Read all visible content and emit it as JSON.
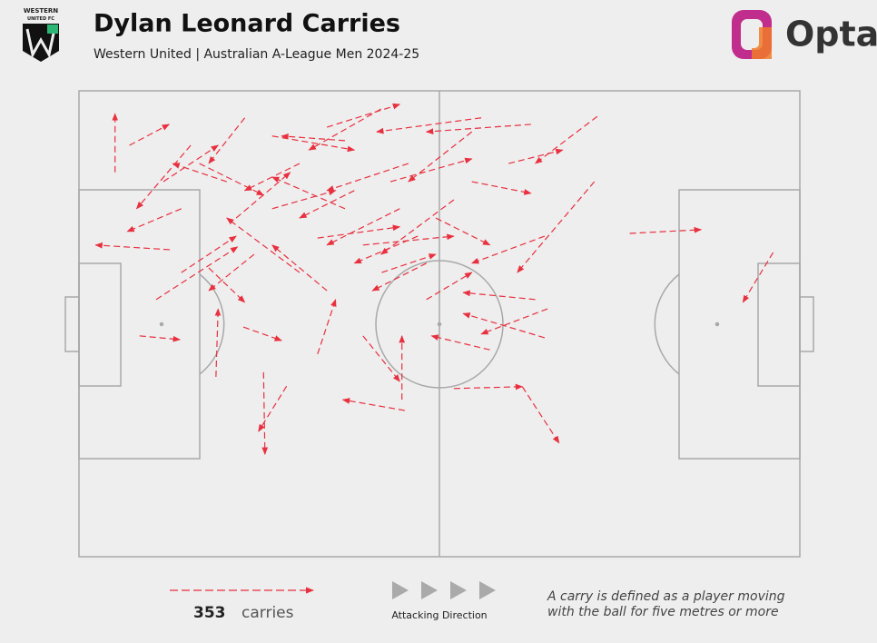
{
  "chart_data": {
    "type": "carry-map",
    "title": "Dylan Leonard Carries",
    "subtitle": "Western United | Australian A-League Men 2024-25",
    "brand": "Opta",
    "club_badge": [
      "WESTERN",
      "UNITED FC"
    ],
    "total": 353,
    "total_label": "carries",
    "direction_label": "Attacking Direction",
    "note": [
      "A carry is defined as a player moving",
      "with the ball for five metres or more"
    ],
    "color": "#e8303f",
    "xlim": [
      0,
      100
    ],
    "ylim": [
      0,
      100
    ],
    "carries": [
      [
        76.4,
        30.6,
        86.3,
        29.8
      ],
      [
        96.3,
        34.7,
        92.1,
        45.4
      ],
      [
        61.5,
        63.5,
        66.6,
        75.6
      ],
      [
        52.0,
        63.9,
        61.5,
        63.5
      ],
      [
        45.2,
        68.6,
        36.6,
        66.3
      ],
      [
        28.8,
        63.4,
        24.9,
        73.1
      ],
      [
        25.6,
        60.4,
        25.8,
        78.0
      ],
      [
        8.4,
        52.6,
        14.0,
        53.4
      ],
      [
        12.6,
        34.1,
        2.3,
        33.1
      ],
      [
        5.0,
        17.5,
        5.0,
        4.9
      ],
      [
        7.0,
        11.7,
        12.5,
        7.2
      ],
      [
        19.0,
        61.4,
        19.3,
        46.8
      ],
      [
        44.8,
        66.3,
        44.8,
        52.6
      ],
      [
        64.6,
        53.0,
        53.3,
        47.8
      ],
      [
        63.3,
        44.8,
        53.3,
        43.3
      ],
      [
        71.5,
        19.5,
        60.8,
        39.0
      ],
      [
        71.9,
        5.5,
        63.3,
        15.6
      ],
      [
        62.7,
        7.2,
        48.2,
        8.8
      ],
      [
        41.9,
        3.9,
        31.9,
        12.7
      ],
      [
        39.4,
        52.6,
        44.5,
        62.4
      ],
      [
        10.7,
        44.8,
        22.0,
        33.5
      ],
      [
        22.8,
        50.7,
        28.1,
        53.6
      ],
      [
        57.0,
        55.6,
        48.9,
        52.6
      ],
      [
        65.0,
        46.8,
        55.8,
        52.2
      ],
      [
        55.8,
        5.8,
        41.3,
        8.8
      ],
      [
        30.6,
        39.0,
        20.5,
        27.3
      ],
      [
        36.9,
        25.3,
        26.8,
        18.5
      ],
      [
        45.7,
        15.6,
        34.4,
        21.4
      ],
      [
        16.7,
        15.6,
        25.6,
        22.4
      ],
      [
        21.8,
        27.3,
        29.3,
        17.5
      ],
      [
        33.1,
        31.6,
        44.5,
        29.2
      ],
      [
        48.2,
        37.0,
        40.7,
        42.9
      ],
      [
        26.8,
        9.7,
        38.2,
        12.7
      ],
      [
        14.2,
        25.3,
        6.7,
        30.2
      ],
      [
        11.7,
        19.5,
        19.3,
        11.7
      ],
      [
        39.4,
        33.1,
        52.0,
        31.2
      ],
      [
        52.0,
        23.4,
        41.9,
        35.1
      ],
      [
        34.4,
        42.9,
        26.8,
        33.1
      ],
      [
        24.3,
        35.1,
        18.0,
        42.9
      ],
      [
        43.2,
        19.5,
        54.5,
        14.6
      ],
      [
        54.5,
        19.5,
        62.7,
        22.0
      ],
      [
        59.6,
        15.6,
        67.1,
        12.7
      ],
      [
        64.6,
        31.2,
        54.5,
        37.0
      ],
      [
        48.2,
        44.8,
        54.5,
        39.0
      ],
      [
        33.1,
        56.5,
        35.6,
        44.8
      ],
      [
        18.0,
        38.0,
        23.0,
        45.4
      ],
      [
        30.6,
        15.6,
        23.0,
        21.4
      ],
      [
        38.2,
        21.4,
        30.6,
        27.3
      ],
      [
        44.5,
        25.3,
        34.4,
        33.1
      ],
      [
        49.5,
        27.3,
        57.0,
        33.1
      ],
      [
        15.5,
        11.7,
        8.0,
        25.3
      ],
      [
        20.5,
        19.5,
        13.0,
        15.6
      ],
      [
        26.8,
        25.3,
        35.6,
        21.4
      ],
      [
        36.9,
        10.7,
        28.1,
        9.7
      ],
      [
        47.0,
        31.2,
        38.2,
        37.0
      ],
      [
        42.0,
        39.0,
        49.5,
        35.1
      ],
      [
        54.5,
        8.8,
        45.7,
        19.5
      ],
      [
        23.0,
        5.8,
        18.0,
        15.6
      ],
      [
        34.4,
        7.8,
        44.5,
        2.9
      ],
      [
        14.2,
        39.0,
        21.8,
        31.2
      ]
    ]
  }
}
